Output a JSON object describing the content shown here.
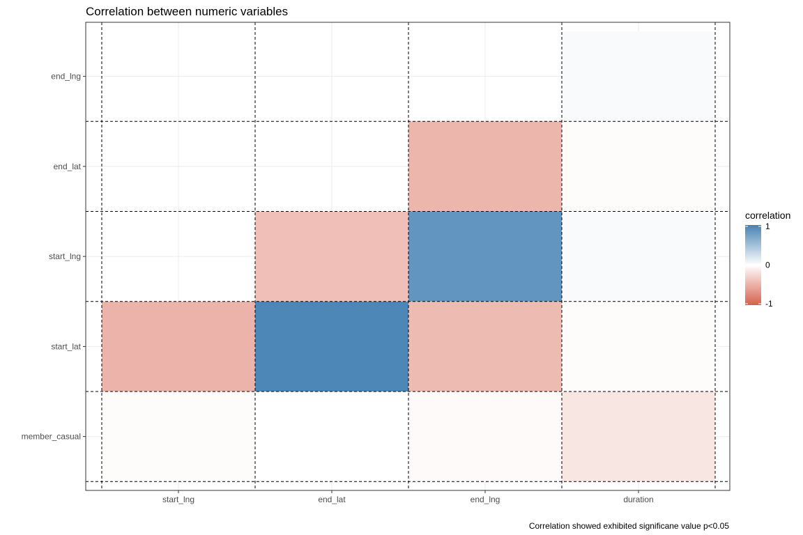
{
  "chart_data": {
    "type": "heatmap",
    "title": "Correlation between numeric variables",
    "caption": "Correlation showed exhibited significane value p<0.05",
    "x_categories": [
      "start_lng",
      "end_lat",
      "end_lng",
      "duration"
    ],
    "y_categories": [
      "member_casual",
      "start_lat",
      "start_lng",
      "end_lat",
      "end_lng"
    ],
    "cells": [
      {
        "x": "start_lng",
        "y": "member_casual",
        "value": -0.02
      },
      {
        "x": "end_lat",
        "y": "member_casual",
        "value": 0.0
      },
      {
        "x": "end_lng",
        "y": "member_casual",
        "value": -0.03
      },
      {
        "x": "duration",
        "y": "member_casual",
        "value": -0.16
      },
      {
        "x": "start_lng",
        "y": "start_lat",
        "value": -0.48
      },
      {
        "x": "end_lat",
        "y": "start_lat",
        "value": 0.96
      },
      {
        "x": "end_lng",
        "y": "start_lat",
        "value": -0.43
      },
      {
        "x": "duration",
        "y": "start_lat",
        "value": -0.02
      },
      {
        "x": "end_lat",
        "y": "start_lng",
        "value": -0.4
      },
      {
        "x": "end_lng",
        "y": "start_lng",
        "value": 0.85
      },
      {
        "x": "duration",
        "y": "start_lng",
        "value": 0.04
      },
      {
        "x": "end_lng",
        "y": "end_lat",
        "value": -0.46
      },
      {
        "x": "duration",
        "y": "end_lat",
        "value": -0.02
      },
      {
        "x": "duration",
        "y": "end_lng",
        "value": 0.04
      }
    ],
    "legend": {
      "title": "correlation",
      "ticks": [
        "1",
        "0",
        "-1"
      ],
      "low_color": "#D6604D",
      "mid_color": "#FFFFFF",
      "high_color": "#4682B4"
    },
    "grid": true
  }
}
